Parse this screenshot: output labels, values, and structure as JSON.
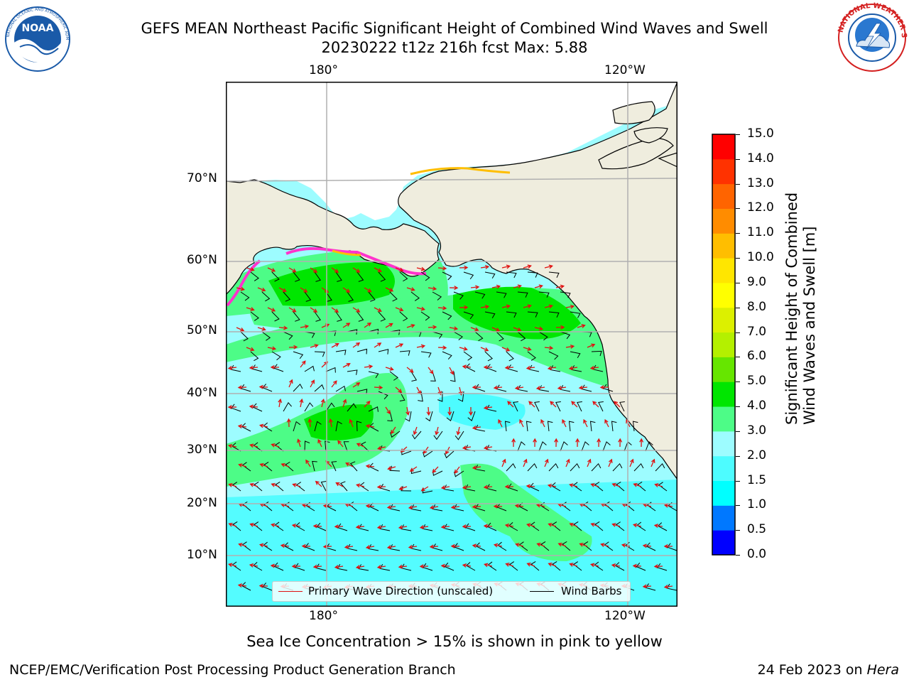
{
  "header": {
    "title_line1": "GEFS MEAN Northeast Pacific Significant Height of Combined Wind Waves and Swell",
    "title_line2": "20230222 t12z 216h fcst   Max: 5.88"
  },
  "logos": {
    "noaa": {
      "text": "NOAA",
      "ring_text": "NATIONAL OCEANIC AND ATMOSPHERIC ADMINISTRATION · U.S. DEPARTMENT OF COMMERCE",
      "color": "#1a5aa8"
    },
    "nws": {
      "ring_text": "NATIONAL WEATHER SERVICE",
      "color": "#d42020"
    }
  },
  "map": {
    "lon_ticks_top": [
      "180°",
      "120°W"
    ],
    "lon_ticks_bottom": [
      "180°",
      "120°W"
    ],
    "lat_ticks": [
      "70°N",
      "60°N",
      "50°N",
      "40°N",
      "30°N",
      "20°N",
      "10°N"
    ],
    "land_color": "#efedde",
    "grid_color": "#b0b0b0",
    "colors": {
      "wave_arrow": "#e01010",
      "wind_barb": "#000000",
      "sea_ice": "#ff33cc"
    }
  },
  "legend": {
    "items": [
      {
        "label": "Primary Wave Direction (unscaled)",
        "color": "#e01010"
      },
      {
        "label": "Wind Barbs",
        "color": "#000000"
      }
    ]
  },
  "colorbar": {
    "title_line1": "Significant Height of Combined",
    "title_line2": "Wind Waves and Swell [m]",
    "tick_labels": [
      "0.0",
      "0.5",
      "1.0",
      "1.5",
      "2.0",
      "3.0",
      "4.0",
      "5.0",
      "6.0",
      "7.0",
      "8.0",
      "9.0",
      "10.0",
      "11.0",
      "12.0",
      "13.0",
      "14.0",
      "15.0"
    ],
    "colors": [
      "#0000ff",
      "#0078ff",
      "#00ffff",
      "#4dfcff",
      "#9dfcff",
      "#4dfc87",
      "#00e600",
      "#66e600",
      "#b4f000",
      "#dcf000",
      "#ffff00",
      "#ffe600",
      "#ffbe00",
      "#ff8c00",
      "#ff6400",
      "#ff3200",
      "#ff0000"
    ]
  },
  "notes": {
    "sea_ice_note": "Sea Ice Concentration > 15% is shown in pink to yellow"
  },
  "footer": {
    "left": "NCEP/EMC/Verification Post Processing Product Generation Branch",
    "right_date": "24 Feb 2023 on ",
    "right_host": "Hera"
  }
}
